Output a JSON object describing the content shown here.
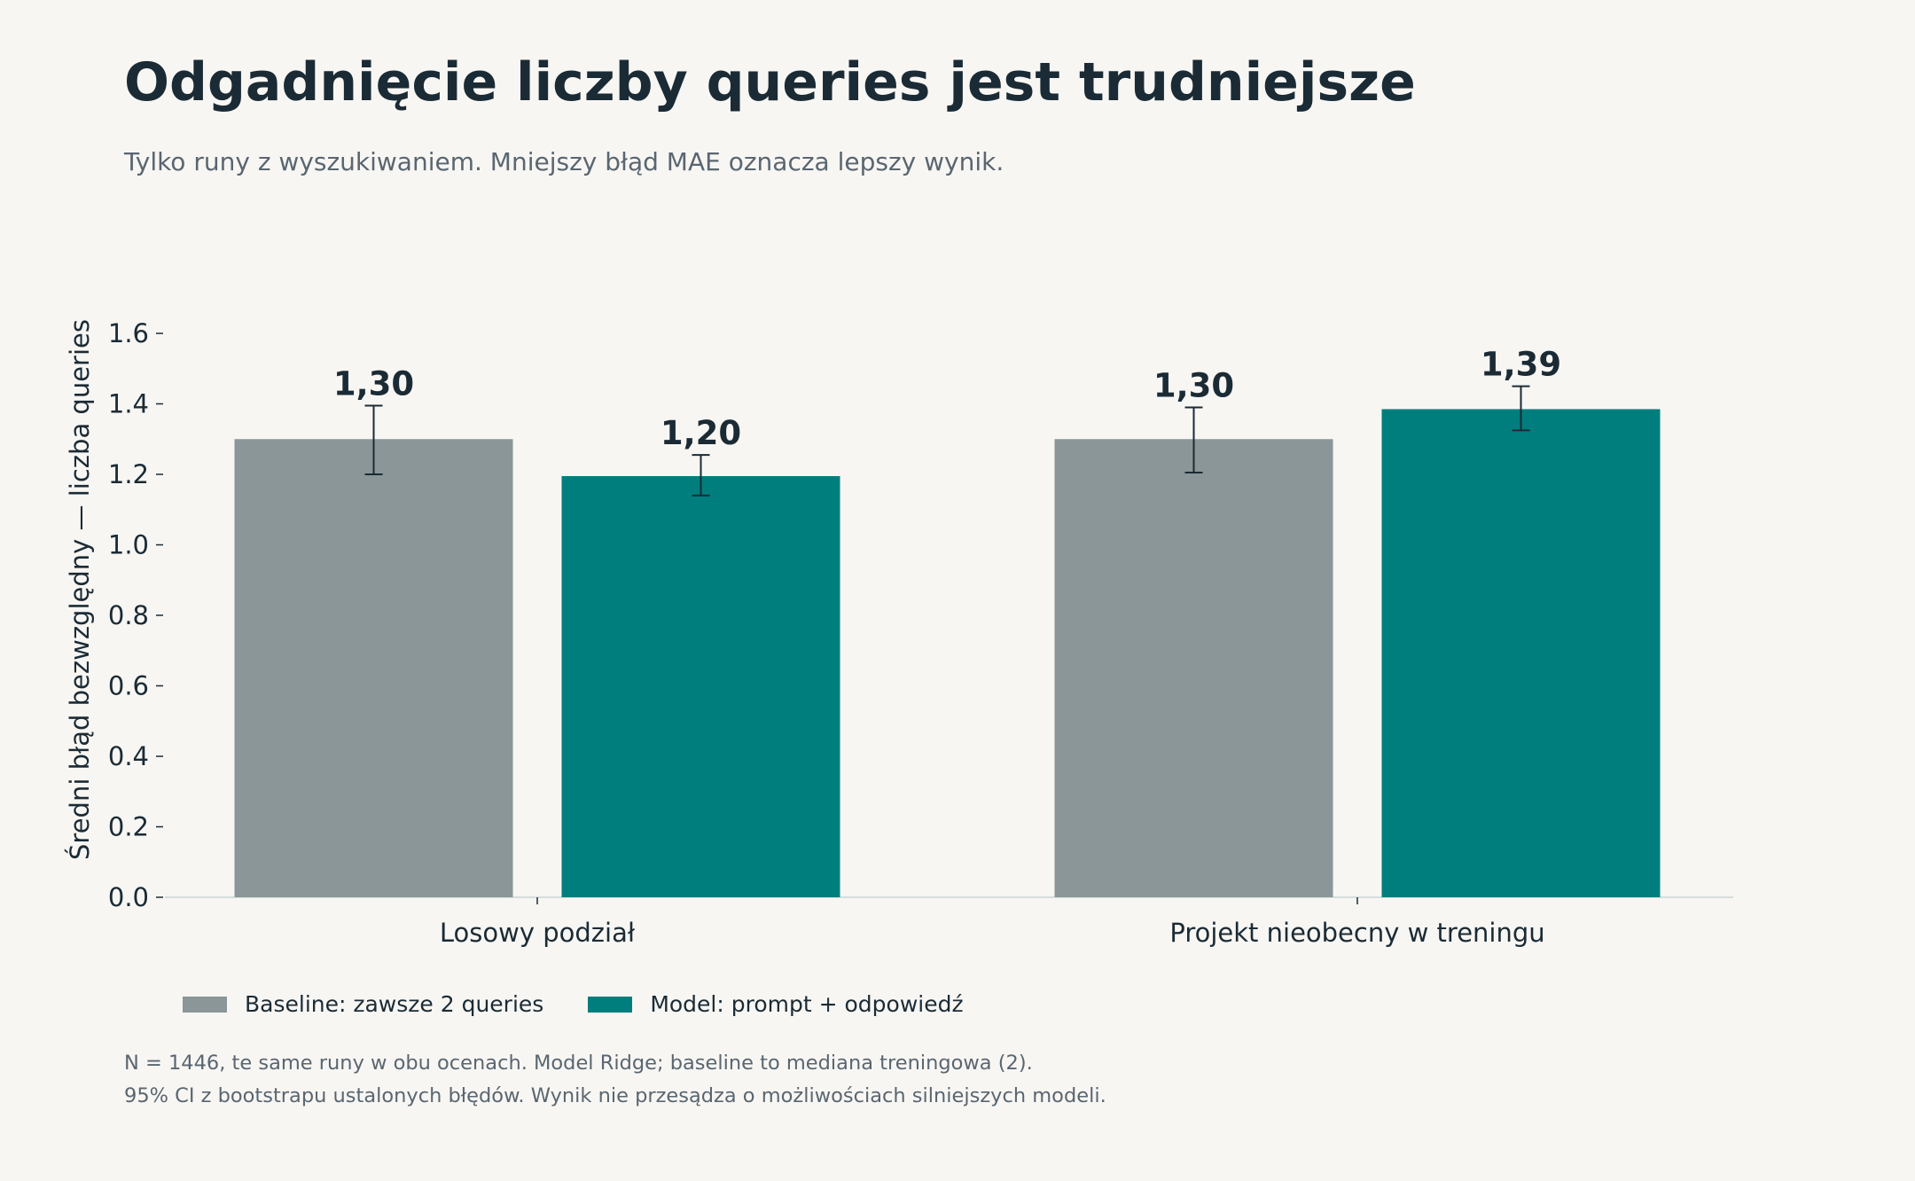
{
  "chart_data": {
    "type": "bar",
    "title": "Odgadnięcie liczby queries jest trudniejsze",
    "subtitle": "Tylko runy z wyszukiwaniem. Mniejszy błąd MAE oznacza lepszy wynik.",
    "xlabel": "",
    "ylabel": "Średni błąd bezwzględny — liczba queries",
    "ylim": [
      0,
      1.7
    ],
    "yticks": [
      "0.0",
      "0.2",
      "0.4",
      "0.6",
      "0.8",
      "1.0",
      "1.2",
      "1.4",
      "1.6"
    ],
    "categories": [
      "Losowy podział",
      "Projekt nieobecny w treningu"
    ],
    "series": [
      {
        "name": "Baseline: zawsze 2 queries",
        "color": "#8a9697",
        "values": [
          1.3,
          1.3
        ],
        "labels": [
          "1,30",
          "1,30"
        ],
        "ci_low": [
          1.2,
          1.205
        ],
        "ci_high": [
          1.395,
          1.39
        ]
      },
      {
        "name": "Model: prompt + odpowiedź",
        "color": "#007e7e",
        "values": [
          1.195,
          1.385
        ],
        "labels": [
          "1,20",
          "1,39"
        ],
        "ci_low": [
          1.14,
          1.325
        ],
        "ci_high": [
          1.255,
          1.45
        ]
      }
    ],
    "legend_position": "bottom-left",
    "grid": false
  },
  "footnotes": [
    "N = 1446, te same runy w obu ocenach. Model Ridge; baseline to mediana treningowa (2).",
    "95% CI z bootstrapu ustalonych błędów. Wynik nie przesądza o możliwościach silniejszych modeli."
  ]
}
